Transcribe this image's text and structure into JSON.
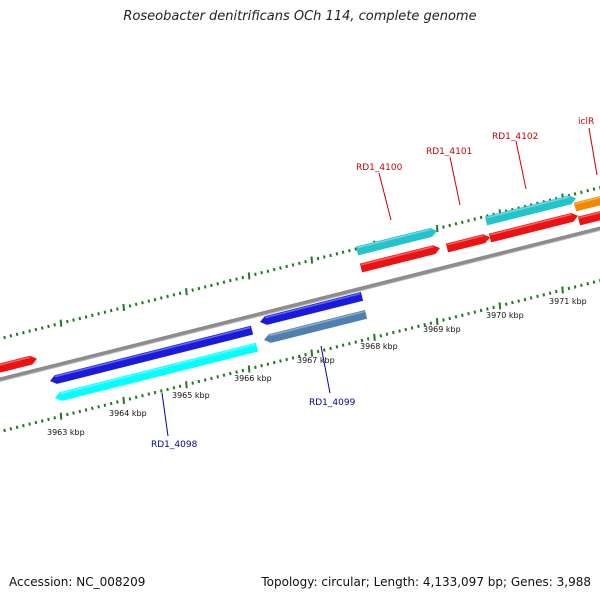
{
  "title": "Roseobacter denitrificans OCh 114, complete genome",
  "footer": {
    "accession": "Accession: NC_008209",
    "summary": "Topology: circular; Length: 4,133,097 bp; Genes: 3,988"
  },
  "colors": {
    "backbone": "#8c8c8c",
    "tick": "#1f7a1f",
    "forward_label": "#cc0000",
    "reverse_label": "#0000aa",
    "red_cds": "#ee1111",
    "cyan_cds": "#22c4cc",
    "bright_cyan_cds": "#00ffff",
    "blue_cds": "#1a1add",
    "steel_cds": "#4f7fb0",
    "orange_cds": "#f28a00"
  },
  "scale": {
    "labels": [
      "3963 kbp",
      "3964 kbp",
      "3965 kbp",
      "3966 kbp",
      "3967 kbp",
      "3968 kbp",
      "3969 kbp",
      "3970 kbp",
      "3971 kbp"
    ]
  },
  "genes": [
    {
      "name": "RD1_4098",
      "strand": "reverse",
      "color": "#00ffff"
    },
    {
      "name": "RD1_4099",
      "strand": "reverse",
      "color": "#4f7fb0"
    },
    {
      "name": "RD1_4100",
      "strand": "forward",
      "color": "#22c4cc"
    },
    {
      "name": "RD1_4101",
      "strand": "forward",
      "color": "#ee1111"
    },
    {
      "name": "RD1_4102",
      "strand": "forward",
      "color": "#22c4cc"
    },
    {
      "name": "iclR",
      "strand": "forward",
      "color": "#f28a00"
    }
  ]
}
